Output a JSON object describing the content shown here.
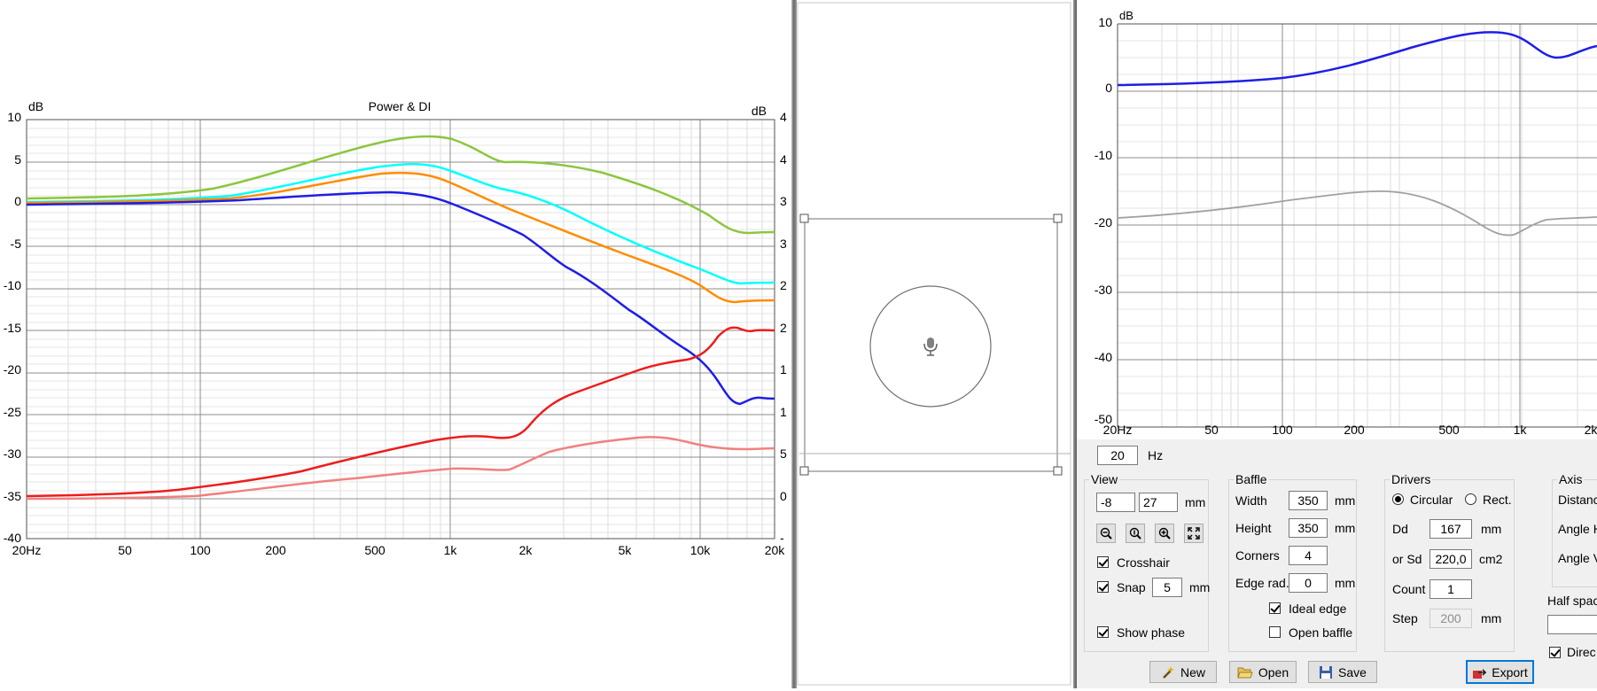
{
  "left_chart": {
    "title": "Power & DI",
    "y_unit_left": "dB",
    "y_unit_right": "dB",
    "y_ticks": [
      "10",
      "5",
      "0",
      "-5",
      "-10",
      "-15",
      "-20",
      "-25",
      "-30",
      "-35",
      "-40"
    ],
    "y_right_ticks": [
      "4",
      "4",
      "3",
      "3",
      "2",
      "2",
      "1",
      "1",
      "5",
      "0",
      "-"
    ],
    "x_ticks": [
      "20Hz",
      "50",
      "100",
      "200",
      "500",
      "1k",
      "2k",
      "5k",
      "10k",
      "20k"
    ]
  },
  "baffle_view": {
    "mic_icon": "microphone-icon"
  },
  "right_chart": {
    "y_unit": "dB",
    "y_ticks": [
      "10",
      "0",
      "-10",
      "-20",
      "-30",
      "-40",
      "-50"
    ],
    "x_ticks": [
      "20Hz",
      "50",
      "100",
      "200",
      "500",
      "1k",
      "2k"
    ]
  },
  "freq_field": {
    "value": "20",
    "unit": "Hz"
  },
  "view_group": {
    "title": "View",
    "x_value": "-8",
    "y_value": "27",
    "unit": "mm",
    "crosshair_label": "Crosshair",
    "snap_label": "Snap",
    "snap_value": "5",
    "snap_unit": "mm",
    "show_phase_label": "Show phase"
  },
  "baffle_group": {
    "title": "Baffle",
    "width_label": "Width",
    "width_value": "350",
    "height_label": "Height",
    "height_value": "350",
    "corners_label": "Corners",
    "corners_value": "4",
    "edge_rad_label": "Edge rad.",
    "edge_rad_value": "0",
    "unit": "mm",
    "ideal_edge_label": "Ideal edge",
    "open_baffle_label": "Open baffle"
  },
  "drivers_group": {
    "title": "Drivers",
    "circular_label": "Circular",
    "rect_label": "Rect.",
    "dd_label": "Dd",
    "dd_value": "167",
    "dd_unit": "mm",
    "sd_label": "or Sd",
    "sd_value": "220,0",
    "sd_unit": "cm2",
    "count_label": "Count",
    "count_value": "1",
    "step_label": "Step",
    "step_value": "200",
    "step_unit": "mm"
  },
  "axis_group": {
    "title": "Axis",
    "distance_label": "Distance",
    "angle_h_label": "Angle H",
    "angle_v_label": "Angle Ve",
    "half_space_label": "Half spac",
    "direct_label": "Direc"
  },
  "buttons": {
    "new": "New",
    "open": "Open",
    "save": "Save",
    "export": "Export"
  },
  "colors": {
    "green": "#8cc63f",
    "cyan": "#00ffff",
    "orange": "#ff8c00",
    "blue": "#1e1ee6",
    "red": "#ee1c1c",
    "pink": "#f08080",
    "gray": "#a0a0a0"
  }
}
